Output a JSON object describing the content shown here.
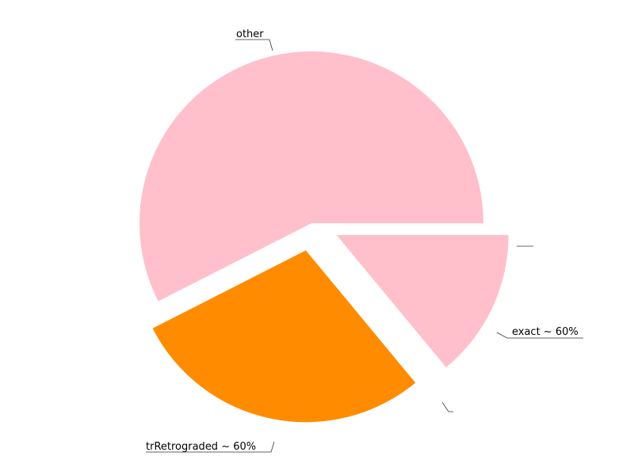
{
  "chart_data": {
    "type": "pie",
    "title": "",
    "slices": [
      {
        "label": "other",
        "value": 57.5,
        "color": "#ffc0cb",
        "exploded": false
      },
      {
        "label": "trRetrograded ~ 60%",
        "value": 28.5,
        "color": "#ff8c00",
        "exploded": true
      },
      {
        "label": "exact ~ 60%",
        "value": 14.0,
        "color": "#ffc0cb",
        "exploded": true
      },
      {
        "label": "",
        "value": 0.0,
        "color": "#ffc0cb",
        "exploded": true
      }
    ],
    "legend": "none",
    "grid": false
  }
}
